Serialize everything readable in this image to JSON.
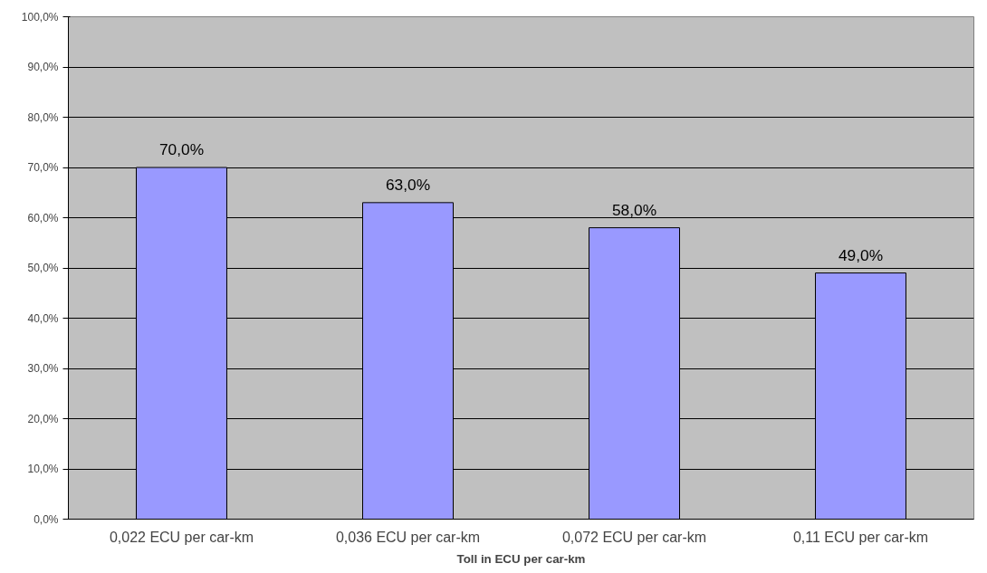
{
  "chart_data": {
    "type": "bar",
    "xlabel": "Toll in ECU per car-km",
    "categories": [
      "0,022 ECU per car-km",
      "0,036 ECU per car-km",
      "0,072 ECU per car-km",
      "0,11 ECU per car-km"
    ],
    "values": [
      70,
      63,
      58,
      49
    ],
    "color": "#9999ff",
    "value_labels": [
      "70,0%",
      "63,0%",
      "58,0%",
      "49,0%"
    ],
    "ylim": [
      0,
      100
    ],
    "yticks": [
      {
        "value": 0,
        "label": "0,0%"
      },
      {
        "value": 10,
        "label": "10,0%"
      },
      {
        "value": 20,
        "label": "20,0%"
      },
      {
        "value": 30,
        "label": "30,0%"
      },
      {
        "value": 40,
        "label": "40,0%"
      },
      {
        "value": 50,
        "label": "50,0%"
      },
      {
        "value": 60,
        "label": "60,0%"
      },
      {
        "value": 70,
        "label": "70,0%"
      },
      {
        "value": 80,
        "label": "80,0%"
      },
      {
        "value": 90,
        "label": "90,0%"
      },
      {
        "value": 100,
        "label": "100,0%"
      }
    ],
    "grid": "y"
  }
}
